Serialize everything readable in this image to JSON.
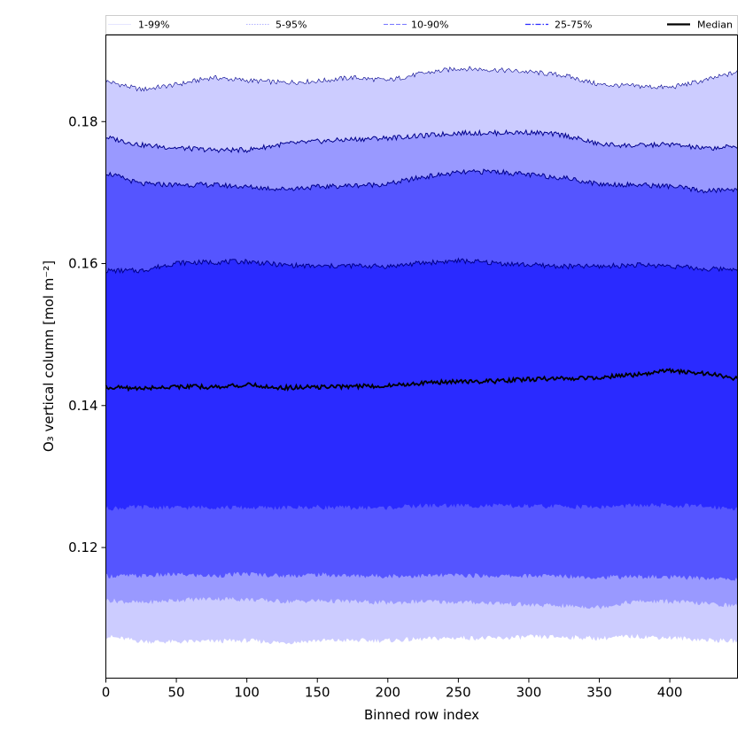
{
  "chart_data": {
    "type": "area",
    "title": "",
    "xlabel": "Binned row index",
    "ylabel": "O₃ vertical column [mol m⁻²]",
    "xlim": [
      0,
      448
    ],
    "ylim": [
      0.1016,
      0.1922
    ],
    "xticks": [
      0,
      50,
      100,
      150,
      200,
      250,
      300,
      350,
      400
    ],
    "yticks": [
      0.12,
      0.14,
      0.16,
      0.18
    ],
    "ytick_labels": [
      "0.12",
      "0.14",
      "0.16",
      "0.18"
    ],
    "grid": false,
    "legend_position": "top",
    "colors": {
      "band_1_99": "#ccccff",
      "band_5_95": "#9999ff",
      "band_10_90": "#5555ff",
      "band_25_75": "#2a2aff",
      "median": "#000000"
    },
    "x": [
      0,
      25,
      50,
      75,
      100,
      125,
      150,
      175,
      200,
      225,
      250,
      275,
      300,
      325,
      350,
      375,
      400,
      425,
      448
    ],
    "bands": [
      {
        "name": "1-99%",
        "upper": [
          0.1857,
          0.1845,
          0.1852,
          0.1862,
          0.1858,
          0.1855,
          0.1857,
          0.1862,
          0.1858,
          0.1868,
          0.1875,
          0.1873,
          0.187,
          0.1865,
          0.1852,
          0.185,
          0.1848,
          0.1858,
          0.187
        ],
        "lower": [
          0.1075,
          0.1068,
          0.1067,
          0.1068,
          0.1069,
          0.1066,
          0.1069,
          0.1069,
          0.1069,
          0.1071,
          0.1073,
          0.1072,
          0.1074,
          0.1074,
          0.1072,
          0.1075,
          0.1073,
          0.107,
          0.1068
        ]
      },
      {
        "name": "5-95%",
        "upper": [
          0.1778,
          0.1767,
          0.1763,
          0.176,
          0.176,
          0.1768,
          0.1772,
          0.1775,
          0.1777,
          0.178,
          0.1784,
          0.1784,
          0.1785,
          0.1781,
          0.1768,
          0.1766,
          0.1768,
          0.1762,
          0.1765
        ],
        "lower": [
          0.1126,
          0.1122,
          0.1126,
          0.1128,
          0.1127,
          0.1124,
          0.1125,
          0.1124,
          0.1122,
          0.1124,
          0.1123,
          0.1122,
          0.1119,
          0.1118,
          0.1116,
          0.1124,
          0.1124,
          0.1121,
          0.1118
        ]
      },
      {
        "name": "10-90%",
        "upper": [
          0.1728,
          0.1712,
          0.1711,
          0.1711,
          0.1708,
          0.1705,
          0.1708,
          0.171,
          0.1712,
          0.1722,
          0.1728,
          0.173,
          0.1725,
          0.1721,
          0.1712,
          0.1711,
          0.1709,
          0.1702,
          0.1705
        ],
        "lower": [
          0.116,
          0.116,
          0.1162,
          0.116,
          0.1163,
          0.116,
          0.1162,
          0.116,
          0.116,
          0.116,
          0.1161,
          0.116,
          0.116,
          0.116,
          0.1158,
          0.1159,
          0.1158,
          0.1157,
          0.1155
        ]
      },
      {
        "name": "25-75%",
        "upper": [
          0.159,
          0.159,
          0.1601,
          0.1602,
          0.1603,
          0.1598,
          0.1596,
          0.1597,
          0.1596,
          0.1601,
          0.1604,
          0.1601,
          0.1598,
          0.1596,
          0.1596,
          0.1598,
          0.1597,
          0.1592,
          0.1593
        ],
        "lower": [
          0.1255,
          0.1257,
          0.1256,
          0.1257,
          0.1256,
          0.1256,
          0.1257,
          0.1256,
          0.1256,
          0.1259,
          0.1259,
          0.1259,
          0.1258,
          0.1258,
          0.1257,
          0.1259,
          0.1259,
          0.1258,
          0.1255
        ]
      }
    ],
    "median": {
      "name": "Median",
      "values": [
        0.1426,
        0.1424,
        0.1427,
        0.1426,
        0.1429,
        0.1425,
        0.1426,
        0.1427,
        0.1428,
        0.1432,
        0.1434,
        0.1434,
        0.1437,
        0.1438,
        0.144,
        0.1443,
        0.1449,
        0.1445,
        0.1438
      ]
    },
    "legend": [
      {
        "label": "1-99%",
        "style": "solid-thin",
        "color": "#ccccff"
      },
      {
        "label": "5-95%",
        "style": "dotted",
        "color": "#9999ff"
      },
      {
        "label": "10-90%",
        "style": "dashed",
        "color": "#7777ff"
      },
      {
        "label": "25-75%",
        "style": "dashdot",
        "color": "#2a2aff"
      },
      {
        "label": "Median",
        "style": "solid-thick",
        "color": "#000000"
      }
    ]
  }
}
